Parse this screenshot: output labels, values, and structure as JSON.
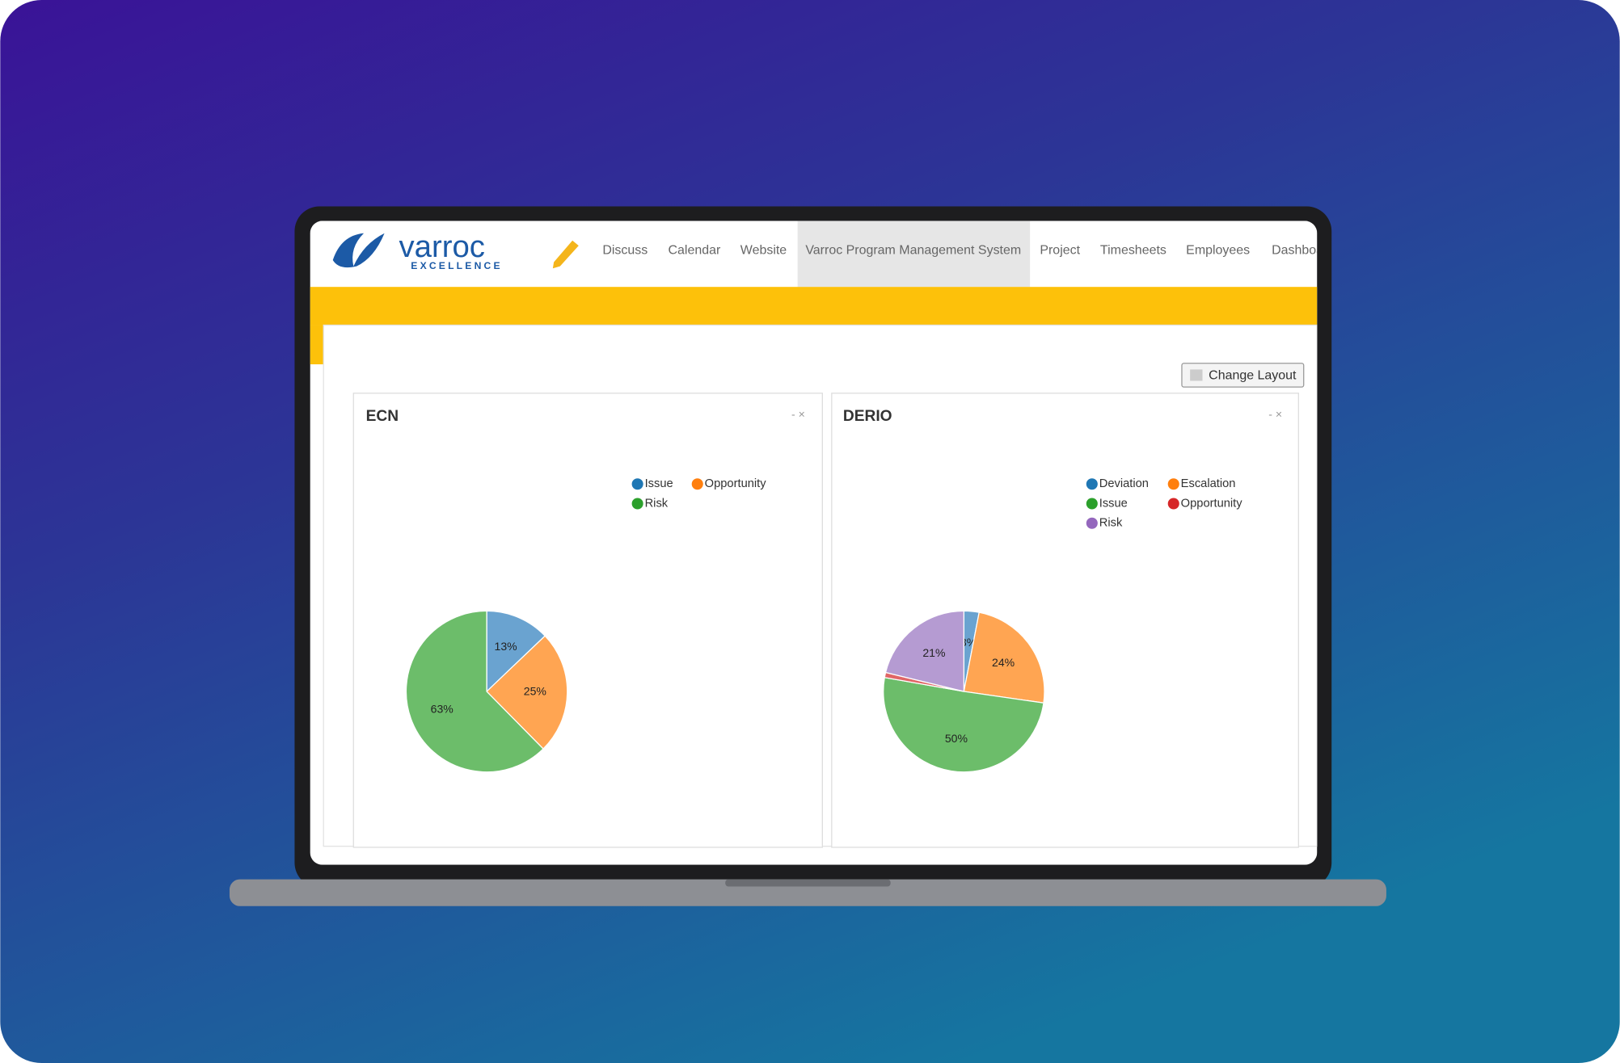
{
  "nav": {
    "brand": "varroc",
    "tagline": "EXCELLENCE",
    "items": [
      "Discuss",
      "Calendar",
      "Website",
      "Varroc Program Management System",
      "Project",
      "Timesheets",
      "Employees",
      "Dashboard"
    ]
  },
  "button": "Change Layout",
  "panel_controls": "- ×",
  "chart_data": [
    {
      "type": "pie",
      "title": "ECN",
      "categories": [
        "Issue",
        "Opportunity",
        "Risk"
      ],
      "values": [
        13,
        25,
        63
      ],
      "value_labels": [
        "13%",
        "25%",
        "63%"
      ],
      "colors": [
        "#1f77b4",
        "#ff7f0e",
        "#2ca02c"
      ],
      "slice_colors": [
        "#6aa3d0",
        "#ffa552",
        "#6cbd6a"
      ]
    },
    {
      "type": "pie",
      "title": "DERIO",
      "categories": [
        "Deviation",
        "Escalation",
        "Issue",
        "Opportunity",
        "Risk"
      ],
      "values": [
        3,
        24,
        50,
        1,
        21
      ],
      "value_labels": [
        "3%",
        "24%",
        "50%",
        null,
        "21%"
      ],
      "colors": [
        "#1f77b4",
        "#ff7f0e",
        "#2ca02c",
        "#d62728",
        "#9467bd"
      ],
      "slice_colors": [
        "#6aa3d0",
        "#ffa552",
        "#6cbd6a",
        "#e06666",
        "#b59bd2"
      ]
    }
  ]
}
